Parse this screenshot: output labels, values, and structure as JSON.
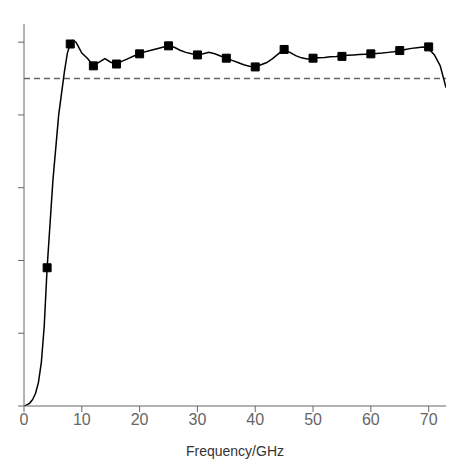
{
  "chart_data": {
    "type": "line",
    "title": "",
    "xlabel": "Frequency/GHz",
    "xlim": [
      0,
      73
    ],
    "ylim": [
      0,
      1.05
    ],
    "xticks": [
      0,
      10,
      20,
      30,
      40,
      50,
      60,
      70
    ],
    "yticks": [
      0,
      0.2,
      0.4,
      0.6,
      0.8,
      1.0
    ],
    "tick_labels": "x",
    "grid": false,
    "series": [
      {
        "type": "line",
        "color": "#000000",
        "x": [
          0,
          0.5,
          1,
          1.5,
          2,
          2.5,
          3,
          3.5,
          4,
          5,
          6,
          7,
          7.5,
          8,
          8.5,
          9,
          9.5,
          10,
          11,
          12,
          13,
          14,
          15,
          16,
          17,
          18,
          19,
          20,
          21,
          22,
          23,
          24,
          25,
          26,
          27,
          28,
          29,
          30,
          31,
          32,
          33,
          34,
          35,
          36,
          37,
          38,
          39,
          40,
          41,
          42,
          43,
          44,
          45,
          46,
          47,
          48,
          49,
          50,
          51,
          52,
          53,
          54,
          55,
          56,
          57,
          58,
          59,
          60,
          61,
          62,
          63,
          64,
          65,
          66,
          67,
          68,
          69,
          70,
          71,
          72,
          73
        ],
        "values": [
          0.0,
          0.003,
          0.008,
          0.018,
          0.035,
          0.065,
          0.12,
          0.22,
          0.38,
          0.62,
          0.8,
          0.92,
          0.97,
          0.995,
          1.005,
          1.0,
          0.985,
          0.97,
          0.955,
          0.935,
          0.945,
          0.955,
          0.945,
          0.94,
          0.948,
          0.955,
          0.962,
          0.968,
          0.974,
          0.978,
          0.982,
          0.986,
          0.99,
          0.986,
          0.978,
          0.972,
          0.968,
          0.965,
          0.968,
          0.972,
          0.968,
          0.962,
          0.956,
          0.95,
          0.944,
          0.938,
          0.934,
          0.932,
          0.938,
          0.944,
          0.955,
          0.968,
          0.98,
          0.972,
          0.963,
          0.957,
          0.954,
          0.956,
          0.957,
          0.958,
          0.96,
          0.961,
          0.963,
          0.964,
          0.965,
          0.966,
          0.967,
          0.968,
          0.969,
          0.97,
          0.972,
          0.974,
          0.977,
          0.98,
          0.983,
          0.985,
          0.987,
          0.982,
          0.965,
          0.935,
          0.875
        ]
      },
      {
        "type": "scatter",
        "marker": "square",
        "color": "#000000",
        "x": [
          4,
          8,
          12,
          16,
          20,
          25,
          30,
          35,
          40,
          45,
          50,
          55,
          60,
          65,
          70
        ],
        "values": [
          0.38,
          0.995,
          0.935,
          0.94,
          0.968,
          0.99,
          0.965,
          0.956,
          0.932,
          0.98,
          0.956,
          0.961,
          0.968,
          0.977,
          0.987
        ]
      }
    ],
    "reference_lines": [
      {
        "y": 0.9,
        "color": "#666666",
        "line_style": "dashed"
      }
    ]
  }
}
